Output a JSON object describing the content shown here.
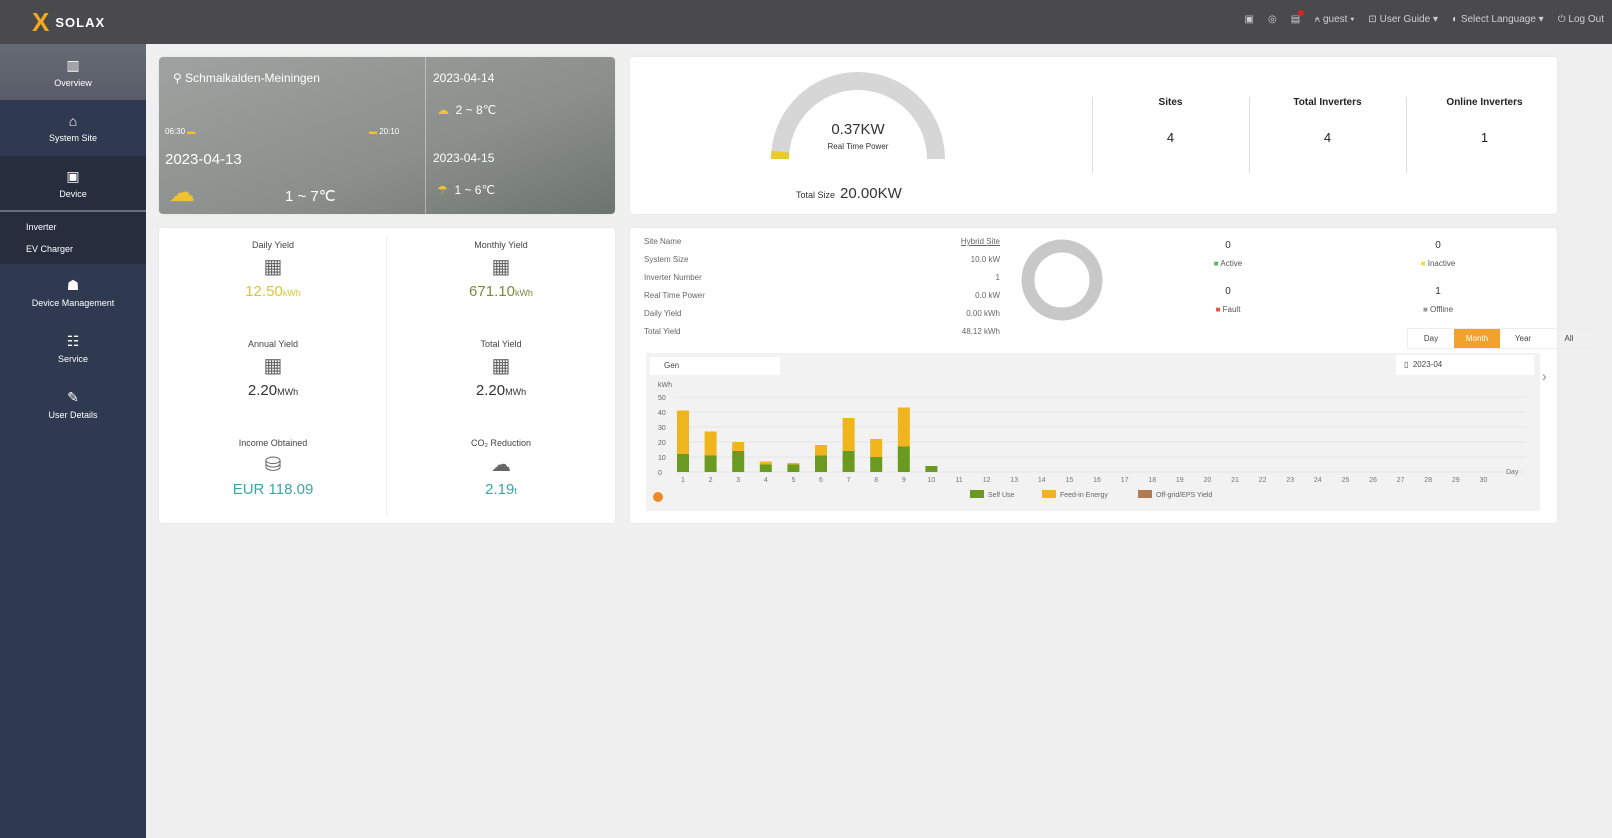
{
  "header": {
    "brand": "SOLAX",
    "user": "guest",
    "user_guide": "User Guide",
    "language": "Select Language",
    "logout": "Log Out"
  },
  "sidebar": {
    "items": [
      {
        "label": "Overview",
        "icon": "chart-icon"
      },
      {
        "label": "System Site",
        "icon": "home-icon"
      },
      {
        "label": "Device",
        "icon": "device-icon"
      }
    ],
    "sub": [
      "Inverter",
      "EV Charger"
    ],
    "items2": [
      {
        "label": "Device Management",
        "icon": "user-icon"
      },
      {
        "label": "Service",
        "icon": "service-icon"
      },
      {
        "label": "User Details",
        "icon": "pen-icon"
      }
    ]
  },
  "weather": {
    "location": "Schmalkalden-Meiningen",
    "sunrise": "06:30",
    "sunset": "20:10",
    "today_date": "2023-04-13",
    "today_temp": "1 ~ 7℃",
    "day2_date": "2023-04-14",
    "day2_temp": "2 ~ 8℃",
    "day3_date": "2023-04-15",
    "day3_temp": "1 ~ 6℃"
  },
  "power": {
    "value": "0.37KW",
    "label": "Real Time Power",
    "fraction": 0.0185,
    "total_label": "Total Size",
    "total": "20.00KW"
  },
  "stats": [
    {
      "label": "Sites",
      "value": "4"
    },
    {
      "label": "Total Inverters",
      "value": "4"
    },
    {
      "label": "Online Inverters",
      "value": "1"
    }
  ],
  "yield": [
    {
      "label": "Daily Yield",
      "value": "12.50",
      "unit": "kWh",
      "color": "#d6c63a"
    },
    {
      "label": "Monthly Yield",
      "value": "671.10",
      "unit": "kWh",
      "color": "#7a8a3a"
    },
    {
      "label": "Annual Yield",
      "value": "2.20",
      "unit": "MWh",
      "color": "#333333"
    },
    {
      "label": "Total Yield",
      "value": "2.20",
      "unit": "MWh",
      "color": "#333333"
    },
    {
      "label": "Income Obtained",
      "value": "EUR 118.09",
      "unit": "",
      "color": "#3aa6a6"
    },
    {
      "label": "CO₂ Reduction",
      "value": "2.19",
      "unit": "t",
      "color": "#3aa6a6"
    }
  ],
  "site": {
    "rows": [
      {
        "k": "Site Name",
        "v": "Hybrid Site"
      },
      {
        "k": "System Size",
        "v": "10.0 kW"
      },
      {
        "k": "Inverter Number",
        "v": "1"
      },
      {
        "k": "Real Time Power",
        "v": "0.0 kW"
      },
      {
        "k": "Daily Yield",
        "v": "0.00 kWh"
      },
      {
        "k": "Total Yield",
        "v": "48.12 kWh"
      }
    ],
    "status": [
      {
        "label": "Active",
        "value": "0",
        "color": "#5cb85c"
      },
      {
        "label": "Inactive",
        "value": "0",
        "color": "#e5e53a"
      },
      {
        "label": "Fault",
        "value": "0",
        "color": "#d9534f"
      },
      {
        "label": "Offline",
        "value": "1",
        "color": "#999999"
      }
    ],
    "tabs": [
      "Day",
      "Month",
      "Year",
      "All"
    ],
    "active_tab": "Month",
    "selector": "Gen",
    "date": "2023-04"
  },
  "chart_data": {
    "type": "bar",
    "stacked": true,
    "ylabel": "kWh",
    "xlabel": "Day",
    "ylim": [
      0,
      50
    ],
    "yticks": [
      0,
      10,
      20,
      30,
      40,
      50
    ],
    "categories": [
      "1",
      "2",
      "3",
      "4",
      "5",
      "6",
      "7",
      "8",
      "9",
      "10",
      "11",
      "12",
      "13",
      "14",
      "15",
      "16",
      "17",
      "18",
      "19",
      "20",
      "21",
      "22",
      "23",
      "24",
      "25",
      "26",
      "27",
      "28",
      "29",
      "30"
    ],
    "series": [
      {
        "name": "Self Use",
        "color": "#6a9a1f",
        "values": [
          12,
          11,
          14,
          5,
          5,
          11,
          14,
          10,
          17,
          4,
          0,
          0,
          0,
          0,
          0,
          0,
          0,
          0,
          0,
          0,
          0,
          0,
          0,
          0,
          0,
          0,
          0,
          0,
          0,
          0
        ]
      },
      {
        "name": "Feed-in Energy",
        "color": "#f0b41c",
        "values": [
          29,
          16,
          6,
          2,
          1,
          7,
          22,
          12,
          26,
          0,
          0,
          0,
          0,
          0,
          0,
          0,
          0,
          0,
          0,
          0,
          0,
          0,
          0,
          0,
          0,
          0,
          0,
          0,
          0,
          0
        ]
      },
      {
        "name": "Off-grid/EPS Yield",
        "color": "#b07a52",
        "values": [
          0,
          0,
          0,
          0,
          0,
          0,
          0,
          0,
          0,
          0,
          0,
          0,
          0,
          0,
          0,
          0,
          0,
          0,
          0,
          0,
          0,
          0,
          0,
          0,
          0,
          0,
          0,
          0,
          0,
          0
        ]
      }
    ],
    "legend": "bottom"
  }
}
